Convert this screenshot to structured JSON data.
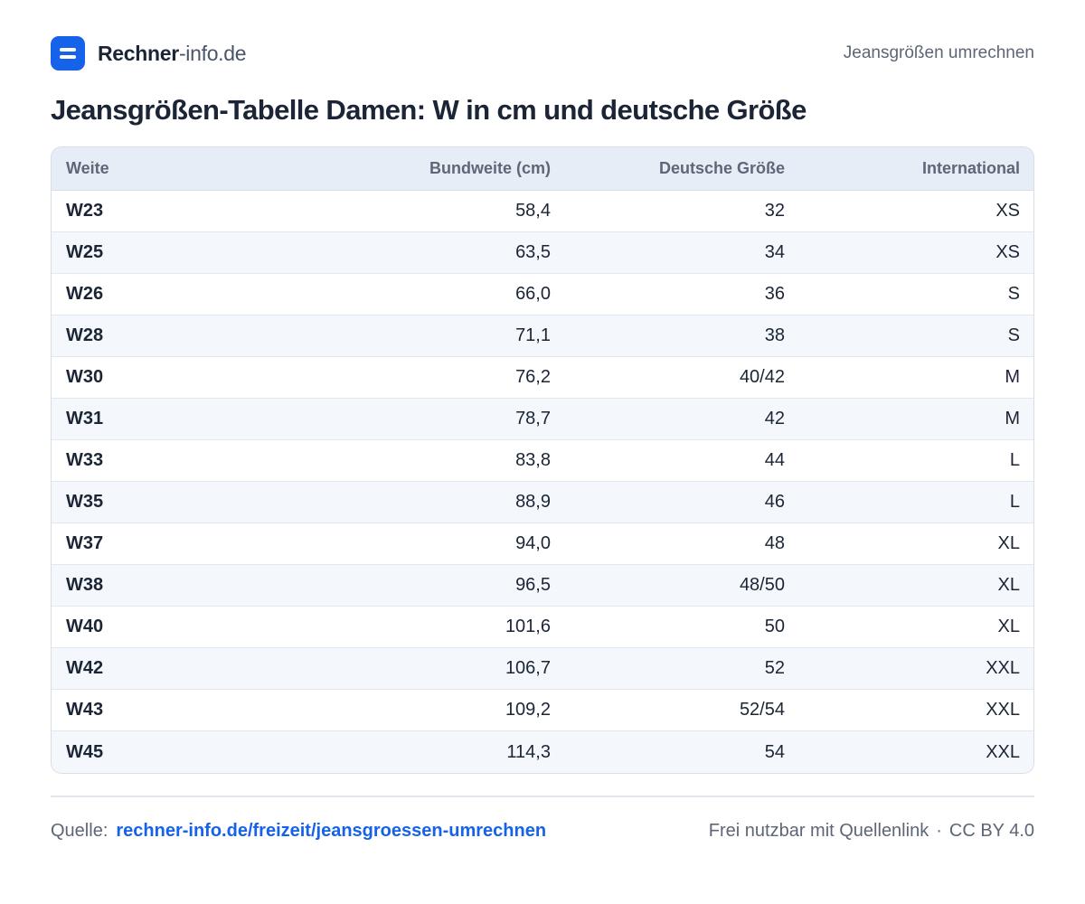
{
  "brand": {
    "name_bold": "Rechner",
    "name_light": "-info.de"
  },
  "header": {
    "right_text": "Jeansgrößen umrechnen"
  },
  "title": "Jeansgrößen-Tabelle  Damen: W in cm und deutsche Größe",
  "table": {
    "columns": [
      "Weite",
      "Bundweite (cm)",
      "Deutsche Größe",
      "International"
    ],
    "rows": [
      [
        "W23",
        "58,4",
        "32",
        "XS"
      ],
      [
        "W25",
        "63,5",
        "34",
        "XS"
      ],
      [
        "W26",
        "66,0",
        "36",
        "S"
      ],
      [
        "W28",
        "71,1",
        "38",
        "S"
      ],
      [
        "W30",
        "76,2",
        "40/42",
        "M"
      ],
      [
        "W31",
        "78,7",
        "42",
        "M"
      ],
      [
        "W33",
        "83,8",
        "44",
        "L"
      ],
      [
        "W35",
        "88,9",
        "46",
        "L"
      ],
      [
        "W37",
        "94,0",
        "48",
        "XL"
      ],
      [
        "W38",
        "96,5",
        "48/50",
        "XL"
      ],
      [
        "W40",
        "101,6",
        "50",
        "XL"
      ],
      [
        "W42",
        "106,7",
        "52",
        "XXL"
      ],
      [
        "W43",
        "109,2",
        "52/54",
        "XXL"
      ],
      [
        "W45",
        "114,3",
        "54",
        "XXL"
      ]
    ]
  },
  "footer": {
    "source_label": "Quelle:",
    "source_link": "rechner-info.de/freizeit/jeansgroessen-umrechnen",
    "license_text": "Frei nutzbar mit Quellenlink",
    "separator": "·",
    "license": "CC BY 4.0"
  },
  "colors": {
    "accent": "#1662e8",
    "header_bg": "#e6edf6",
    "row_alt_bg": "#f4f7fb",
    "text": "#1b2536"
  }
}
